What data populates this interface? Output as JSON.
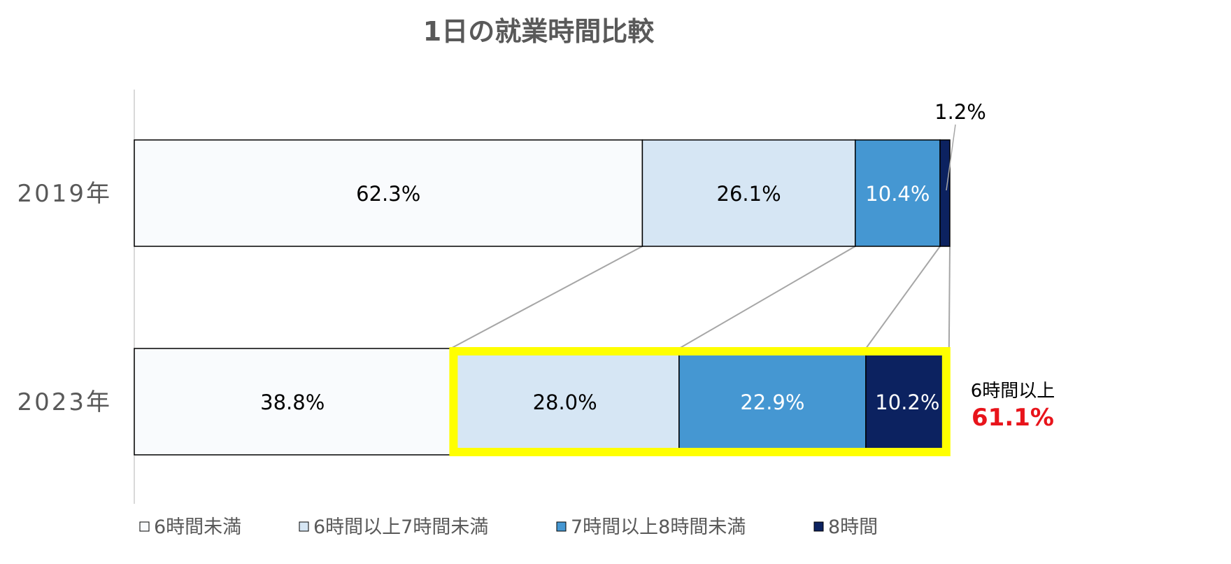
{
  "chart_data": {
    "type": "bar",
    "orientation": "horizontal",
    "stacked": true,
    "title": "1日の就業時間比較",
    "categories": [
      "2019年",
      "2023年"
    ],
    "series": [
      {
        "name": "6時間未満",
        "values": [
          62.3,
          38.8
        ],
        "labels": [
          "62.3%",
          "38.8%"
        ],
        "color": "#F9FBFD",
        "label_color": "#000000"
      },
      {
        "name": "6時間以上7時間未満",
        "values": [
          26.1,
          28.0
        ],
        "labels": [
          "26.1%",
          "28.0%"
        ],
        "color": "#D6E6F4",
        "label_color": "#000000"
      },
      {
        "name": "7時間以上8時間未満",
        "values": [
          10.4,
          22.9
        ],
        "labels": [
          "10.4%",
          "22.9%"
        ],
        "color": "#4597D2",
        "label_color": "#FFFFFF"
      },
      {
        "name": "8時間",
        "values": [
          1.2,
          10.2
        ],
        "labels": [
          "1.2%",
          "10.2%"
        ],
        "color": "#0C2260",
        "label_color": "#FFFFFF"
      }
    ],
    "xlim": [
      0,
      100
    ],
    "legend_position": "bottom",
    "grid": false,
    "annotation": {
      "label": "6時間以上",
      "value": "61.1%",
      "label_color": "#000000",
      "value_color": "#E8141B",
      "highlight_color": "#FFFF00"
    }
  }
}
